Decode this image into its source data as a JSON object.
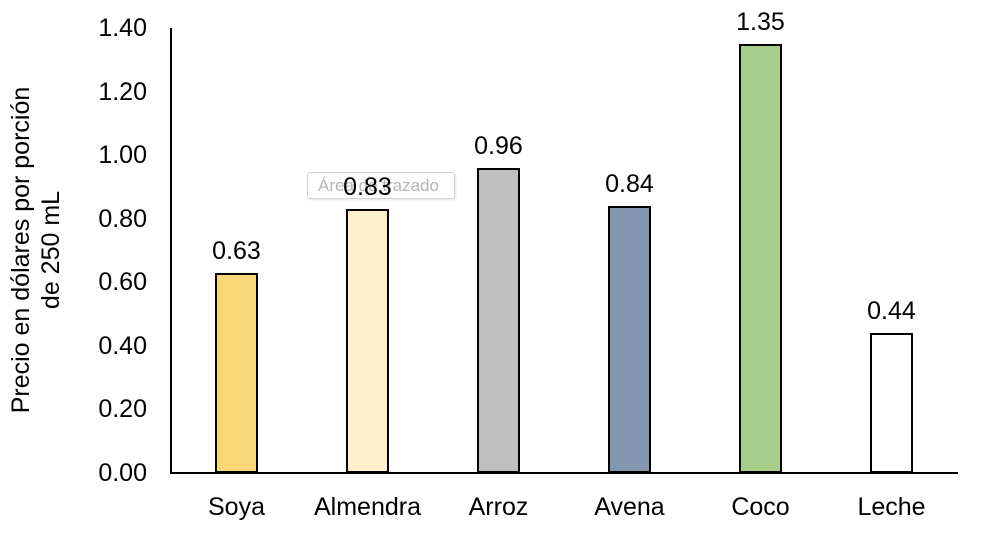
{
  "chart_data": {
    "type": "bar",
    "title": "",
    "xlabel": "",
    "ylabel": "Precio en dólares por porción de 250 mL",
    "ylabel_lines": [
      "Precio en dólares por porción",
      "de 250 mL"
    ],
    "categories": [
      "Soya",
      "Almendra",
      "Arroz",
      "Avena",
      "Coco",
      "Leche"
    ],
    "values": [
      0.63,
      0.83,
      0.96,
      0.84,
      1.35,
      0.44
    ],
    "value_labels": [
      "0.63",
      "0.83",
      "0.96",
      "0.84",
      "1.35",
      "0.44"
    ],
    "bar_colors": [
      "#FAD878",
      "#FEF0CB",
      "#BFBFBF",
      "#8497B0",
      "#A5CF8B",
      "#FFFFFF"
    ],
    "bar_outline_color": "#000000",
    "ylim": [
      0.0,
      1.4
    ],
    "ytick_interval": 0.2,
    "ytick_labels": [
      "0.00",
      "0.20",
      "0.40",
      "0.60",
      "0.80",
      "1.00",
      "1.20",
      "1.40"
    ],
    "grid": false,
    "legend": null,
    "data_labels_shown": true
  },
  "tooltip": {
    "label": "Área de trazado"
  },
  "colors": {
    "axis": "#000000",
    "text": "#000000",
    "tooltip_text": "#b5b5b5",
    "tooltip_border": "#d2d2d2",
    "background": "#ffffff"
  }
}
